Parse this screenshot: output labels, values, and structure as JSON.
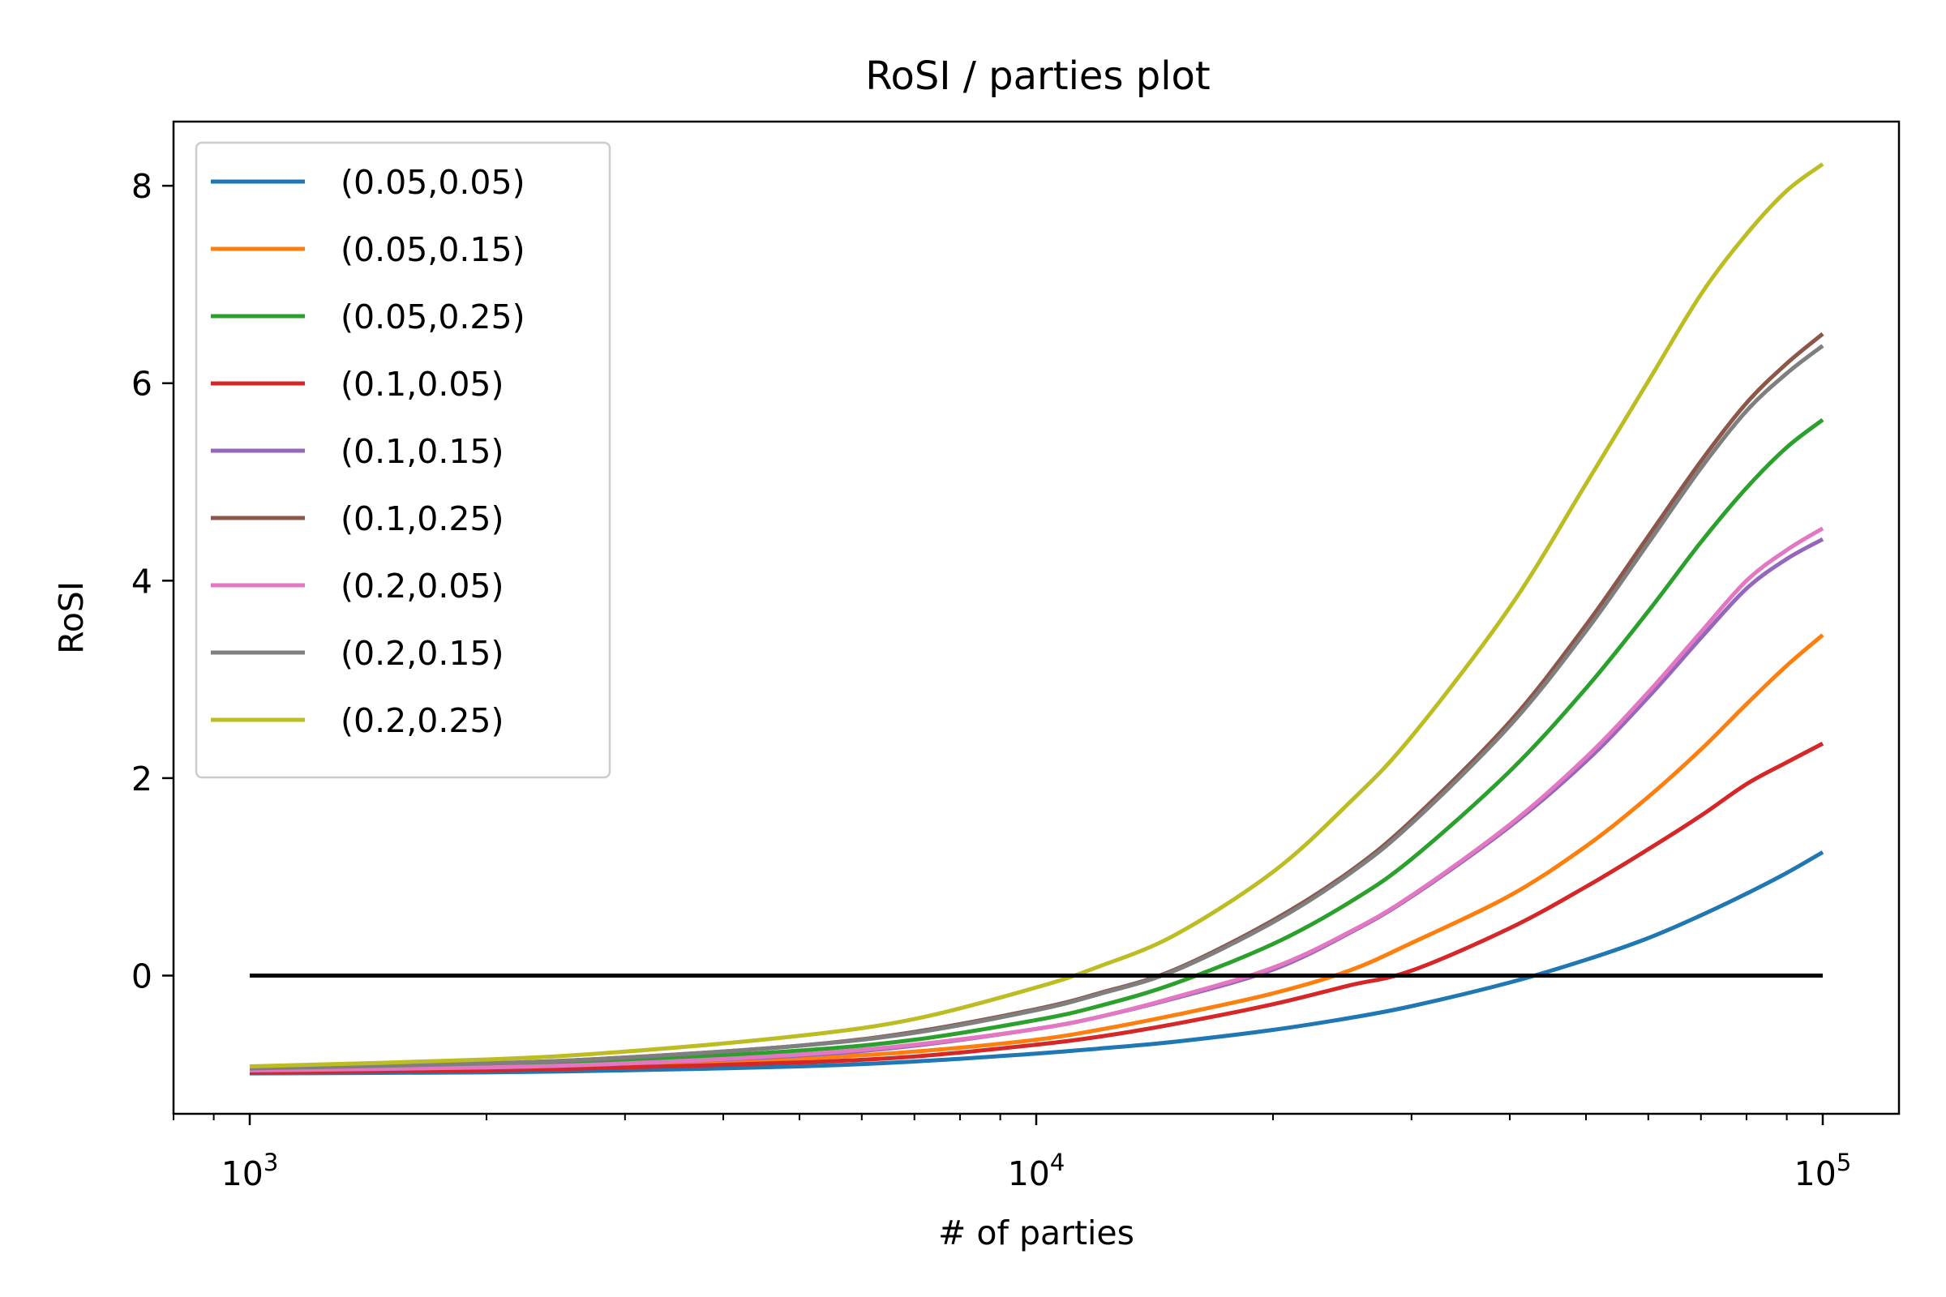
{
  "chart_data": {
    "type": "line",
    "title": "RoSI / parties plot",
    "xlabel": "# of parties",
    "ylabel": "RoSI",
    "x_scale": "log",
    "xlim": [
      800,
      125000
    ],
    "ylim": [
      -1.4,
      8.65
    ],
    "x_ticks": [
      {
        "value": 1000,
        "base": "10",
        "exp": "3"
      },
      {
        "value": 10000,
        "base": "10",
        "exp": "4"
      },
      {
        "value": 100000,
        "base": "10",
        "exp": "5"
      }
    ],
    "y_ticks": [
      0,
      2,
      4,
      6,
      8
    ],
    "y_tick_labels": [
      "0",
      "2",
      "4",
      "6",
      "8"
    ],
    "grid": false,
    "legend_position": "upper-left",
    "reference_line": {
      "y": 0,
      "x_start": 1000,
      "x_end": 100000,
      "color": "#000000"
    },
    "x_samples": [
      1000,
      2000,
      3000,
      5000,
      7000,
      10000,
      12000,
      15000,
      20000,
      25000,
      30000,
      40000,
      50000,
      60000,
      70000,
      80000,
      90000,
      100000
    ],
    "series": [
      {
        "name": "(0.05,0.05)",
        "color": "#1f77b4",
        "values": [
          -0.99,
          -0.98,
          -0.96,
          -0.92,
          -0.87,
          -0.79,
          -0.74,
          -0.67,
          -0.55,
          -0.43,
          -0.31,
          -0.07,
          0.16,
          0.38,
          0.61,
          0.83,
          1.04,
          1.25
        ]
      },
      {
        "name": "(0.05,0.15)",
        "color": "#ff7f0e",
        "values": [
          -0.97,
          -0.94,
          -0.9,
          -0.84,
          -0.77,
          -0.65,
          -0.55,
          -0.4,
          -0.18,
          0.05,
          0.33,
          0.81,
          1.31,
          1.81,
          2.29,
          2.75,
          3.14,
          3.45
        ]
      },
      {
        "name": "(0.05,0.25)",
        "color": "#2ca02c",
        "values": [
          -0.95,
          -0.91,
          -0.86,
          -0.76,
          -0.65,
          -0.45,
          -0.31,
          -0.08,
          0.32,
          0.74,
          1.18,
          2.07,
          2.91,
          3.69,
          4.39,
          4.94,
          5.35,
          5.63
        ]
      },
      {
        "name": "(0.1,0.05)",
        "color": "#d62728",
        "values": [
          -0.98,
          -0.96,
          -0.93,
          -0.88,
          -0.82,
          -0.7,
          -0.62,
          -0.49,
          -0.29,
          -0.1,
          0.05,
          0.48,
          0.9,
          1.28,
          1.62,
          1.94,
          2.16,
          2.35
        ]
      },
      {
        "name": "(0.1,0.15)",
        "color": "#9467bd",
        "values": [
          -0.96,
          -0.93,
          -0.89,
          -0.81,
          -0.71,
          -0.54,
          -0.42,
          -0.23,
          0.06,
          0.43,
          0.8,
          1.51,
          2.17,
          2.82,
          3.42,
          3.92,
          4.22,
          4.42
        ]
      },
      {
        "name": "(0.1,0.25)",
        "color": "#8c564b",
        "values": [
          -0.94,
          -0.89,
          -0.83,
          -0.71,
          -0.57,
          -0.34,
          -0.18,
          0.06,
          0.56,
          1.05,
          1.57,
          2.57,
          3.55,
          4.45,
          5.21,
          5.8,
          6.2,
          6.5
        ]
      },
      {
        "name": "(0.2,0.05)",
        "color": "#e377c2",
        "values": [
          -0.96,
          -0.93,
          -0.89,
          -0.8,
          -0.7,
          -0.54,
          -0.42,
          -0.22,
          0.08,
          0.44,
          0.81,
          1.53,
          2.21,
          2.87,
          3.48,
          4.0,
          4.31,
          4.53
        ]
      },
      {
        "name": "(0.2,0.15)",
        "color": "#7f7f7f",
        "values": [
          -0.94,
          -0.89,
          -0.83,
          -0.71,
          -0.58,
          -0.35,
          -0.19,
          0.05,
          0.54,
          1.03,
          1.54,
          2.53,
          3.49,
          4.38,
          5.14,
          5.72,
          6.1,
          6.38
        ]
      },
      {
        "name": "(0.2,0.25)",
        "color": "#bcbd22",
        "values": [
          -0.92,
          -0.85,
          -0.77,
          -0.61,
          -0.44,
          -0.12,
          0.09,
          0.41,
          1.05,
          1.75,
          2.42,
          3.73,
          4.98,
          6.02,
          6.9,
          7.51,
          7.95,
          8.22
        ]
      }
    ]
  }
}
